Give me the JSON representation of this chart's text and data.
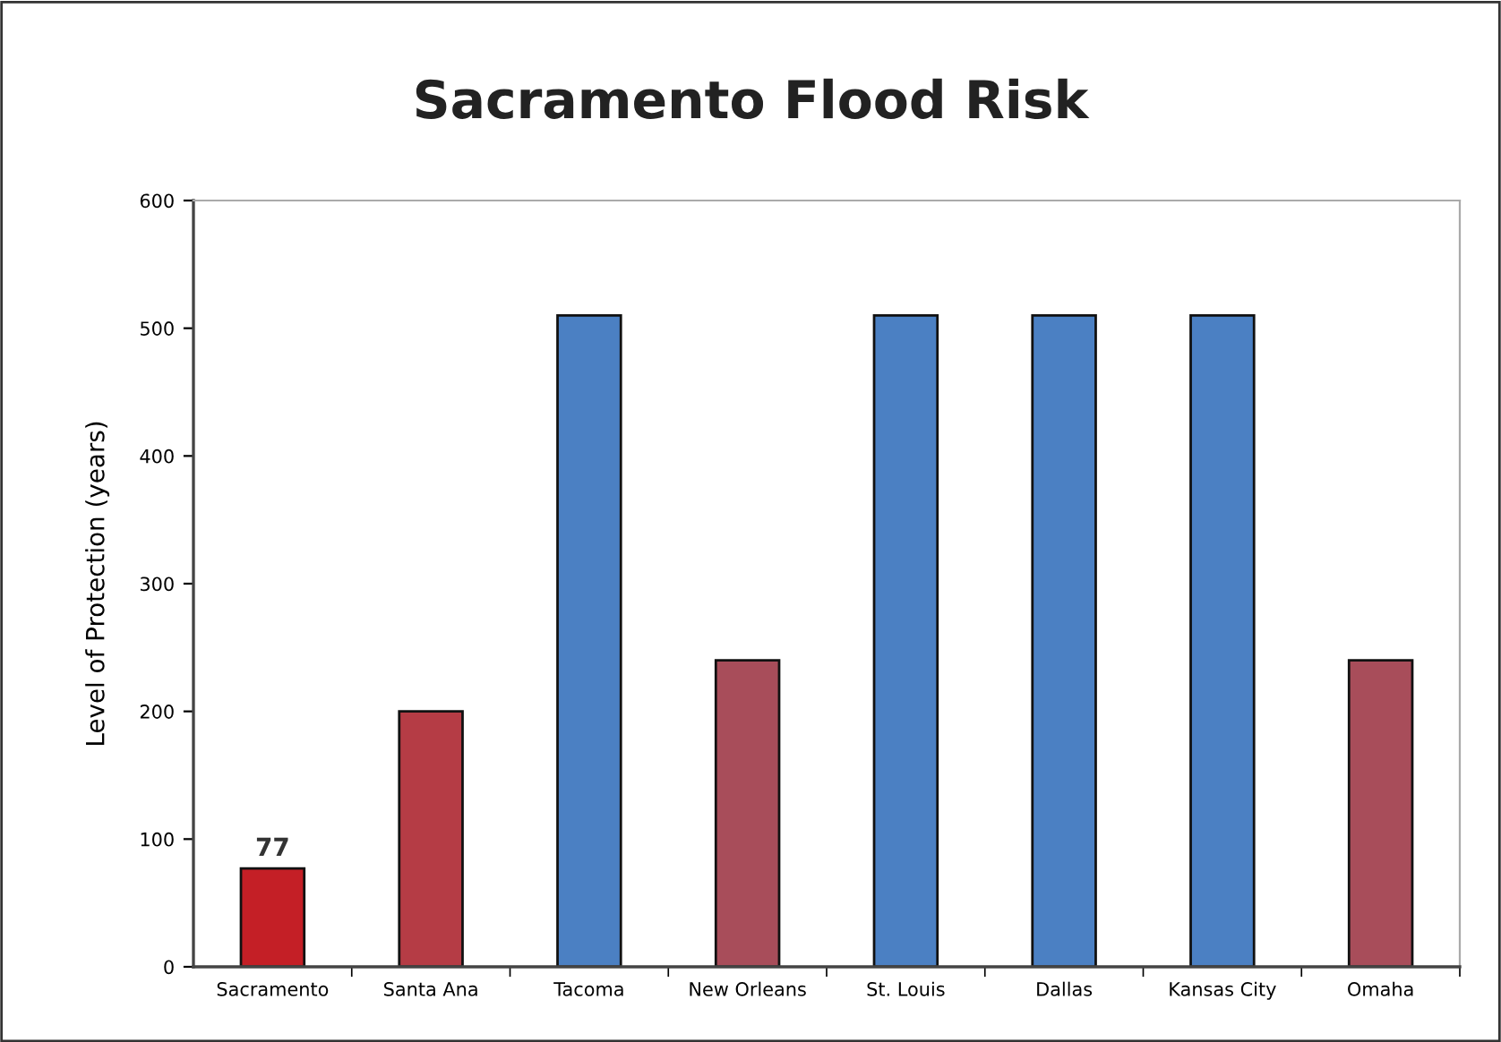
{
  "chart_data": {
    "type": "bar",
    "title": "Sacramento Flood Risk",
    "ylabel": "Level of Protection (years)",
    "categories": [
      "Sacramento",
      "Santa Ana",
      "Tacoma",
      "New Orleans",
      "St. Louis",
      "Dallas",
      "Kansas City",
      "Omaha"
    ],
    "values": [
      77,
      200,
      510,
      240,
      510,
      510,
      510,
      240
    ],
    "colors": [
      "#c41f26",
      "#b53c45",
      "#4b80c3",
      "#a84d5a",
      "#4b80c3",
      "#4b80c3",
      "#4b80c3",
      "#a84d5a"
    ],
    "value_labels": [
      "77",
      null,
      null,
      null,
      null,
      null,
      null,
      null
    ],
    "ylim": [
      0,
      600
    ],
    "yticks": [
      0,
      100,
      200,
      300,
      400,
      500,
      600
    ],
    "grid": false,
    "legend": false
  }
}
